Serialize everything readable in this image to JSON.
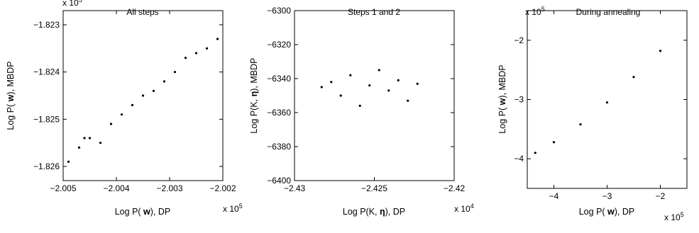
{
  "colors": {
    "background": "#ffffff",
    "foreground": "#000000",
    "marker": "#000000"
  },
  "chart_data": [
    {
      "type": "scatter",
      "title": "All steps",
      "xlabel": {
        "pre": "Log P( ",
        "bold": "w",
        "post": "), DP"
      },
      "ylabel": {
        "pre": "Log P( ",
        "bold": "w",
        "post": "), MBDP"
      },
      "x_multiplier": {
        "base": "x 10",
        "exp": "5"
      },
      "y_multiplier": {
        "base": "x 10",
        "exp": "5"
      },
      "xlim": [
        -2.005,
        -2.002
      ],
      "ylim": [
        -1.8263,
        -1.8227
      ],
      "x_ticks": [
        -2.005,
        -2.004,
        -2.003,
        -2.002
      ],
      "x_tick_labels": [
        "−2.005",
        "−2.004",
        "−2.003",
        "−2.002"
      ],
      "y_ticks": [
        -1.826,
        -1.825,
        -1.824,
        -1.823
      ],
      "y_tick_labels": [
        "−1.826",
        "−1.825",
        "−1.824",
        "−1.823"
      ],
      "grid": false,
      "series": [
        {
          "x": [
            -2.0049,
            -2.0047,
            -2.0046,
            -2.0045,
            -2.0043,
            -2.0041,
            -2.0039,
            -2.0037,
            -2.0035,
            -2.0033,
            -2.0031,
            -2.0029,
            -2.0027,
            -2.0025,
            -2.0023,
            -2.0021
          ],
          "y": [
            -1.8259,
            -1.8256,
            -1.8254,
            -1.8254,
            -1.8255,
            -1.8251,
            -1.8249,
            -1.8247,
            -1.8245,
            -1.8244,
            -1.8242,
            -1.824,
            -1.8237,
            -1.8236,
            -1.8235,
            -1.8233
          ]
        }
      ]
    },
    {
      "type": "scatter",
      "title": "Steps 1 and 2",
      "xlabel": {
        "pre": "Log P(K, ",
        "bold": "η",
        "post": "), DP"
      },
      "ylabel": {
        "pre": "Log P(K, ",
        "bold": "η",
        "post": "), MBDP"
      },
      "x_multiplier": {
        "base": "x 10",
        "exp": "4"
      },
      "xlim": [
        -2.43,
        -2.42
      ],
      "ylim": [
        -6400,
        -6300
      ],
      "x_ticks": [
        -2.43,
        -2.425,
        -2.42
      ],
      "x_tick_labels": [
        "−2.43",
        "−2.425",
        "−2.42"
      ],
      "y_ticks": [
        -6400,
        -6380,
        -6360,
        -6340,
        -6320,
        -6300
      ],
      "y_tick_labels": [
        "−6400",
        "−6380",
        "−6360",
        "−6340",
        "−6320",
        "−6300"
      ],
      "grid": false,
      "series": [
        {
          "x": [
            -2.4283,
            -2.4277,
            -2.4271,
            -2.4265,
            -2.4259,
            -2.4253,
            -2.4247,
            -2.4241,
            -2.4235,
            -2.4229,
            -2.4223
          ],
          "y": [
            -6345,
            -6342,
            -6350,
            -6338,
            -6356,
            -6344,
            -6335,
            -6347,
            -6341,
            -6353,
            -6343
          ]
        }
      ]
    },
    {
      "type": "scatter",
      "title": "During annealing",
      "xlabel": {
        "pre": "Log P( ",
        "bold": "w",
        "post": "), DP"
      },
      "ylabel": {
        "pre": "Log P( ",
        "bold": "w",
        "post": "), MBDP"
      },
      "x_multiplier": {
        "base": "x 10",
        "exp": "5"
      },
      "y_multiplier": {
        "base": "x 10",
        "exp": "5"
      },
      "xlim": [
        -4.5,
        -1.5
      ],
      "ylim": [
        -4.5,
        -1.5
      ],
      "x_ticks": [
        -4,
        -3,
        -2
      ],
      "x_tick_labels": [
        "−4",
        "−3",
        "−2"
      ],
      "y_ticks": [
        -4,
        -3,
        -2
      ],
      "y_tick_labels": [
        "−4",
        "−3",
        "−2"
      ],
      "grid": false,
      "series": [
        {
          "x": [
            -4.35,
            -4.0,
            -3.5,
            -3.0,
            -2.5,
            -2.0
          ],
          "y": [
            -3.9,
            -3.72,
            -3.42,
            -3.05,
            -2.62,
            -2.18
          ]
        }
      ]
    }
  ]
}
